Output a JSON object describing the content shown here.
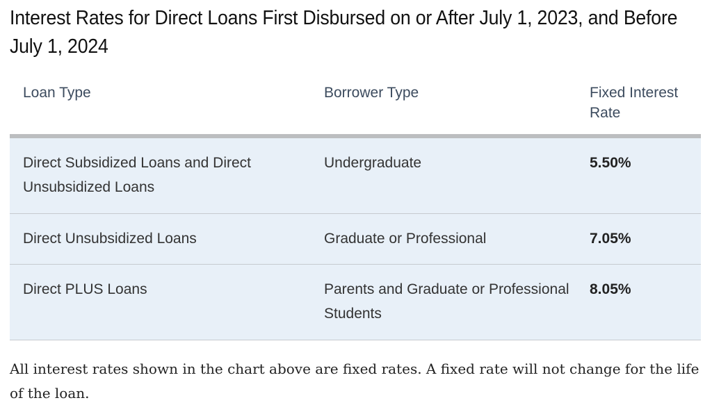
{
  "title": "Interest Rates for Direct Loans First Disbursed on or After July 1, 2023, and Before July 1, 2024",
  "table": {
    "headers": [
      "Loan Type",
      "Borrower Type",
      "Fixed Interest Rate"
    ],
    "rows": [
      [
        "Direct Subsidized Loans and Direct Unsubsidized Loans",
        "Undergraduate",
        "5.50%"
      ],
      [
        "Direct Unsubsidized Loans",
        "Graduate or Professional",
        "7.05%"
      ],
      [
        "Direct PLUS Loans",
        "Parents and Graduate or Professional Students",
        "8.05%"
      ]
    ]
  },
  "note": "All interest rates shown in the chart above are fixed rates. A fixed rate will not change for the life of the loan."
}
